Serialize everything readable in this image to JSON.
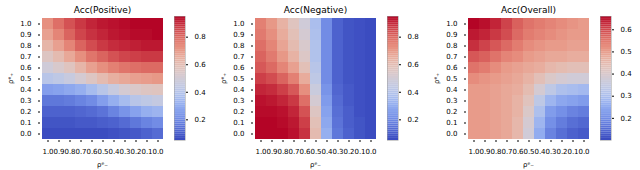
{
  "chart_data": [
    {
      "type": "heatmap",
      "title": "Acc(Positive)",
      "x_label": "ρᵉ₋",
      "y_label": "ρᵉ₊",
      "categories": [
        "1.0",
        "0.9",
        "0.8",
        "0.7",
        "0.6",
        "0.5",
        "0.4",
        "0.3",
        "0.2",
        "0.1",
        "0.0"
      ],
      "y_categories": [
        "0.0",
        "0.1",
        "0.2",
        "0.3",
        "0.4",
        "0.5",
        "0.6",
        "0.7",
        "0.8",
        "0.9",
        "1.0"
      ],
      "values": [
        [
          0.05,
          0.05,
          0.05,
          0.05,
          0.05,
          0.05,
          0.06,
          0.07,
          0.08,
          0.1,
          0.12
        ],
        [
          0.07,
          0.07,
          0.07,
          0.08,
          0.08,
          0.09,
          0.1,
          0.12,
          0.15,
          0.18,
          0.2
        ],
        [
          0.1,
          0.1,
          0.1,
          0.11,
          0.12,
          0.14,
          0.18,
          0.22,
          0.26,
          0.3,
          0.32
        ],
        [
          0.15,
          0.15,
          0.16,
          0.18,
          0.2,
          0.25,
          0.3,
          0.35,
          0.4,
          0.42,
          0.44
        ],
        [
          0.25,
          0.26,
          0.28,
          0.3,
          0.35,
          0.4,
          0.45,
          0.5,
          0.53,
          0.55,
          0.56
        ],
        [
          0.4,
          0.42,
          0.45,
          0.5,
          0.55,
          0.6,
          0.64,
          0.66,
          0.68,
          0.69,
          0.7
        ],
        [
          0.48,
          0.52,
          0.56,
          0.62,
          0.68,
          0.72,
          0.75,
          0.77,
          0.78,
          0.79,
          0.79
        ],
        [
          0.55,
          0.6,
          0.66,
          0.72,
          0.77,
          0.8,
          0.83,
          0.85,
          0.86,
          0.87,
          0.87
        ],
        [
          0.62,
          0.68,
          0.74,
          0.8,
          0.84,
          0.87,
          0.89,
          0.9,
          0.91,
          0.92,
          0.92
        ],
        [
          0.68,
          0.74,
          0.8,
          0.85,
          0.88,
          0.9,
          0.92,
          0.93,
          0.94,
          0.94,
          0.95
        ],
        [
          0.72,
          0.78,
          0.83,
          0.87,
          0.9,
          0.92,
          0.93,
          0.94,
          0.95,
          0.95,
          0.95
        ]
      ],
      "colorbar_range": [
        0.05,
        0.95
      ],
      "colorbar_ticks": [
        0.2,
        0.4,
        0.6,
        0.8
      ]
    },
    {
      "type": "heatmap",
      "title": "Acc(Negative)",
      "x_label": "ρᵉ₋",
      "y_label": "ρᵉ₊",
      "categories": [
        "1.0",
        "0.9",
        "0.8",
        "0.7",
        "0.6",
        "0.5",
        "0.4",
        "0.3",
        "0.2",
        "0.1",
        "0.0"
      ],
      "y_categories": [
        "0.0",
        "0.1",
        "0.2",
        "0.3",
        "0.4",
        "0.5",
        "0.6",
        "0.7",
        "0.8",
        "0.9",
        "1.0"
      ],
      "values": [
        [
          0.95,
          0.95,
          0.95,
          0.93,
          0.88,
          0.6,
          0.3,
          0.15,
          0.1,
          0.07,
          0.05
        ],
        [
          0.95,
          0.95,
          0.94,
          0.92,
          0.86,
          0.58,
          0.28,
          0.14,
          0.09,
          0.07,
          0.05
        ],
        [
          0.94,
          0.94,
          0.93,
          0.9,
          0.83,
          0.55,
          0.26,
          0.13,
          0.09,
          0.06,
          0.05
        ],
        [
          0.93,
          0.92,
          0.9,
          0.87,
          0.78,
          0.5,
          0.24,
          0.12,
          0.08,
          0.06,
          0.05
        ],
        [
          0.9,
          0.89,
          0.86,
          0.82,
          0.72,
          0.46,
          0.22,
          0.11,
          0.08,
          0.06,
          0.05
        ],
        [
          0.86,
          0.84,
          0.8,
          0.75,
          0.65,
          0.42,
          0.2,
          0.1,
          0.07,
          0.06,
          0.05
        ],
        [
          0.82,
          0.79,
          0.74,
          0.68,
          0.58,
          0.4,
          0.2,
          0.1,
          0.07,
          0.06,
          0.05
        ],
        [
          0.8,
          0.76,
          0.7,
          0.63,
          0.54,
          0.38,
          0.2,
          0.1,
          0.07,
          0.06,
          0.05
        ],
        [
          0.78,
          0.74,
          0.67,
          0.6,
          0.52,
          0.38,
          0.2,
          0.1,
          0.07,
          0.06,
          0.05
        ],
        [
          0.76,
          0.72,
          0.65,
          0.58,
          0.5,
          0.37,
          0.2,
          0.1,
          0.07,
          0.06,
          0.05
        ],
        [
          0.75,
          0.7,
          0.63,
          0.56,
          0.48,
          0.36,
          0.2,
          0.1,
          0.07,
          0.06,
          0.05
        ]
      ],
      "colorbar_range": [
        0.05,
        0.95
      ],
      "colorbar_ticks": [
        0.2,
        0.4,
        0.6,
        0.8
      ]
    },
    {
      "type": "heatmap",
      "title": "Acc(Overall)",
      "x_label": "ρᵉ₋",
      "y_label": "ρᵉ₊",
      "categories": [
        "1.0",
        "0.9",
        "0.8",
        "0.7",
        "0.6",
        "0.5",
        "0.4",
        "0.3",
        "0.2",
        "0.1",
        "0.0"
      ],
      "y_categories": [
        "0.0",
        "0.1",
        "0.2",
        "0.3",
        "0.4",
        "0.5",
        "0.6",
        "0.7",
        "0.8",
        "0.9",
        "1.0"
      ],
      "values": [
        [
          0.5,
          0.5,
          0.49,
          0.48,
          0.45,
          0.37,
          0.25,
          0.18,
          0.15,
          0.13,
          0.12
        ],
        [
          0.5,
          0.5,
          0.49,
          0.48,
          0.45,
          0.38,
          0.27,
          0.2,
          0.17,
          0.15,
          0.14
        ],
        [
          0.5,
          0.5,
          0.49,
          0.48,
          0.46,
          0.4,
          0.3,
          0.22,
          0.2,
          0.18,
          0.17
        ],
        [
          0.5,
          0.5,
          0.49,
          0.48,
          0.46,
          0.42,
          0.33,
          0.27,
          0.24,
          0.23,
          0.22
        ],
        [
          0.5,
          0.5,
          0.49,
          0.48,
          0.47,
          0.44,
          0.38,
          0.33,
          0.3,
          0.29,
          0.28
        ],
        [
          0.52,
          0.51,
          0.5,
          0.49,
          0.48,
          0.46,
          0.43,
          0.4,
          0.38,
          0.37,
          0.37
        ],
        [
          0.55,
          0.54,
          0.52,
          0.5,
          0.49,
          0.48,
          0.47,
          0.45,
          0.44,
          0.43,
          0.43
        ],
        [
          0.58,
          0.57,
          0.55,
          0.53,
          0.52,
          0.5,
          0.49,
          0.48,
          0.48,
          0.47,
          0.47
        ],
        [
          0.62,
          0.6,
          0.58,
          0.56,
          0.54,
          0.52,
          0.51,
          0.5,
          0.5,
          0.49,
          0.49
        ],
        [
          0.64,
          0.63,
          0.61,
          0.59,
          0.56,
          0.54,
          0.53,
          0.52,
          0.51,
          0.5,
          0.5
        ],
        [
          0.66,
          0.65,
          0.63,
          0.6,
          0.57,
          0.55,
          0.54,
          0.53,
          0.52,
          0.51,
          0.5
        ]
      ],
      "colorbar_range": [
        0.1,
        0.66
      ],
      "colorbar_ticks": [
        0.2,
        0.3,
        0.4,
        0.5,
        0.6
      ]
    }
  ]
}
